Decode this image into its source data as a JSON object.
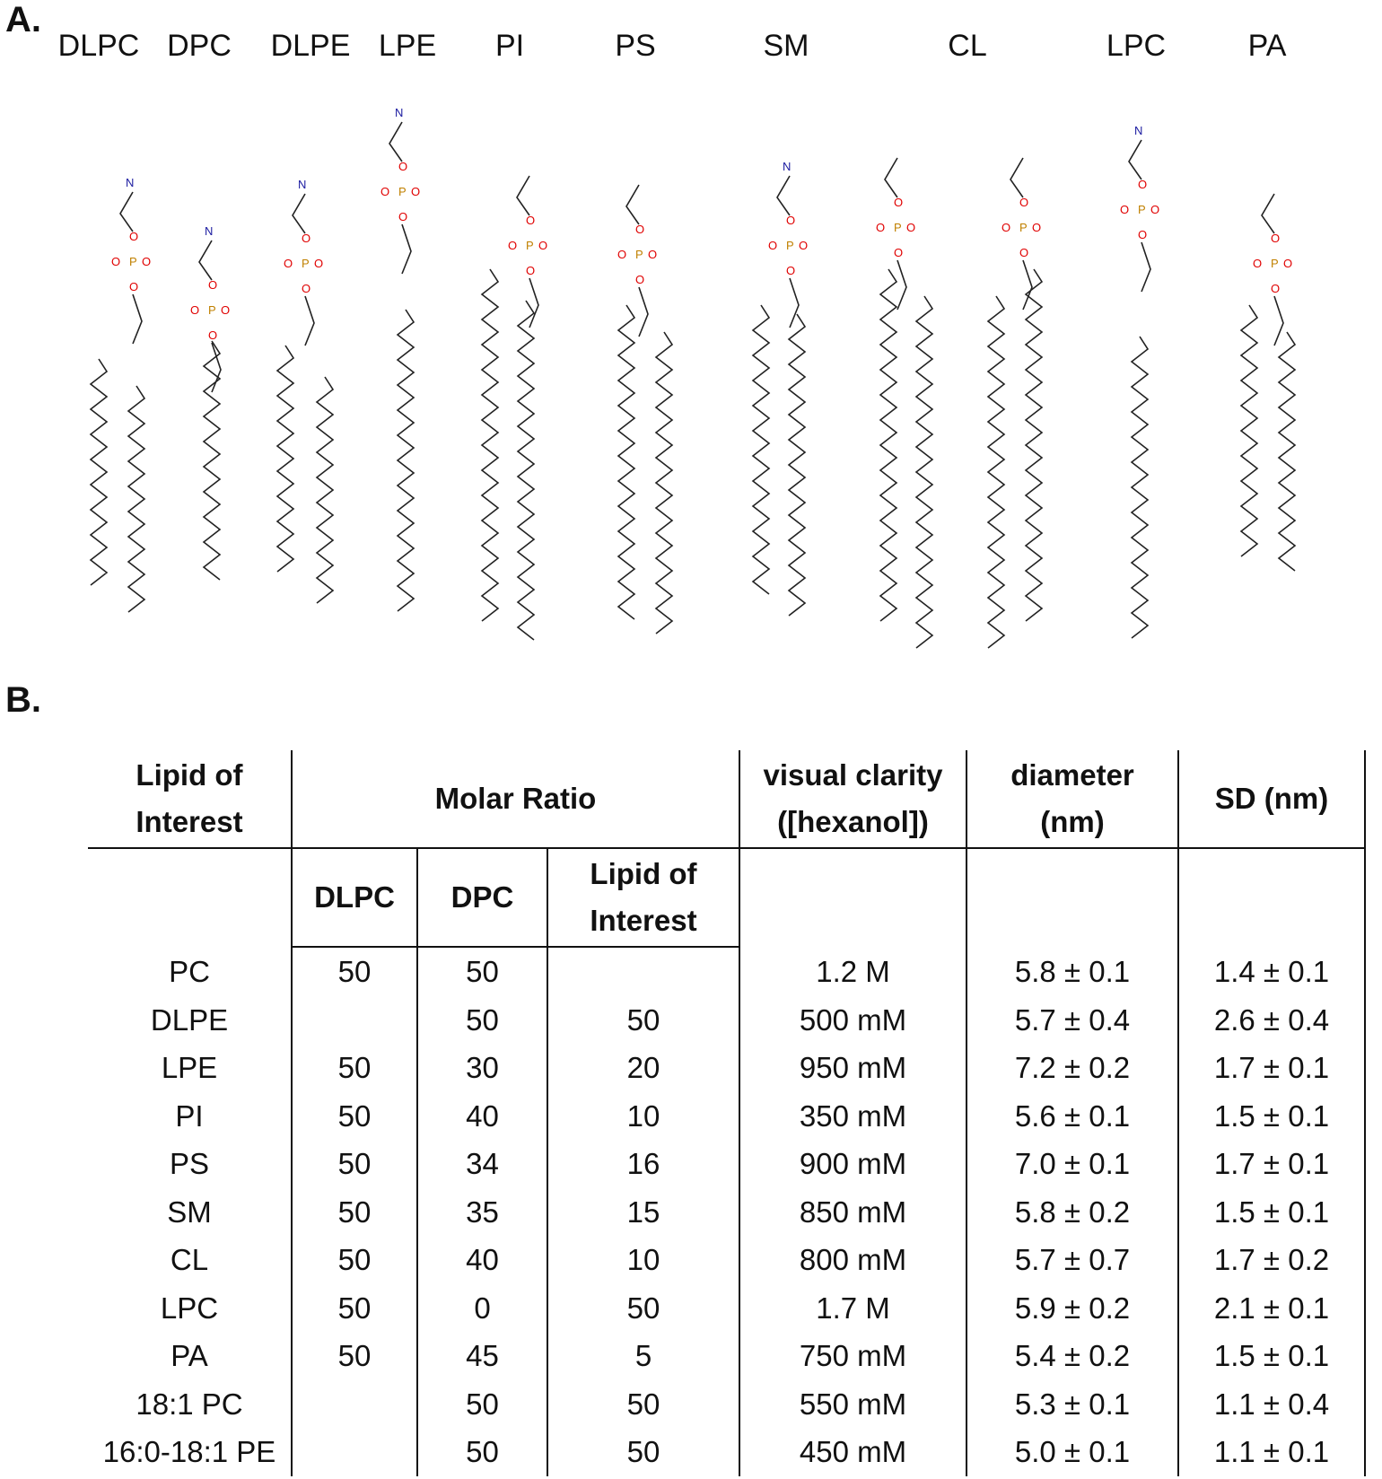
{
  "panels": {
    "a": "A.",
    "b": "B."
  },
  "structures": {
    "names": [
      "DLPC",
      "DPC",
      "DLPE",
      "LPE",
      "PI",
      "PS",
      "SM",
      "CL",
      "LPC",
      "PA"
    ]
  },
  "table": {
    "headers": {
      "lipid_of_interest": [
        "Lipid of",
        "Interest"
      ],
      "molar_ratio": "Molar Ratio",
      "visual_clarity": [
        "visual clarity",
        "([hexanol])"
      ],
      "diameter": [
        "diameter",
        "(nm)"
      ],
      "sd": "SD (nm)",
      "sub_dlpc": "DLPC",
      "sub_dpc": "DPC",
      "sub_lipid": [
        "Lipid of",
        "Interest"
      ]
    },
    "rows": [
      {
        "lipid": "PC",
        "dlpc": "50",
        "dpc": "50",
        "loi": "",
        "clarity": "1.2 M",
        "diameter": "5.8 ± 0.1",
        "sd": "1.4 ± 0.1"
      },
      {
        "lipid": "DLPE",
        "dlpc": "",
        "dpc": "50",
        "loi": "50",
        "clarity": "500 mM",
        "diameter": "5.7 ± 0.4",
        "sd": "2.6 ± 0.4"
      },
      {
        "lipid": "LPE",
        "dlpc": "50",
        "dpc": "30",
        "loi": "20",
        "clarity": "950 mM",
        "diameter": "7.2 ± 0.2",
        "sd": "1.7 ± 0.1"
      },
      {
        "lipid": "PI",
        "dlpc": "50",
        "dpc": "40",
        "loi": "10",
        "clarity": "350 mM",
        "diameter": "5.6 ± 0.1",
        "sd": "1.5 ± 0.1"
      },
      {
        "lipid": "PS",
        "dlpc": "50",
        "dpc": "34",
        "loi": "16",
        "clarity": "900 mM",
        "diameter": "7.0 ± 0.1",
        "sd": "1.7 ± 0.1"
      },
      {
        "lipid": "SM",
        "dlpc": "50",
        "dpc": "35",
        "loi": "15",
        "clarity": "850 mM",
        "diameter": "5.8 ± 0.2",
        "sd": "1.5 ± 0.1"
      },
      {
        "lipid": "CL",
        "dlpc": "50",
        "dpc": "40",
        "loi": "10",
        "clarity": "800 mM",
        "diameter": "5.7 ± 0.7",
        "sd": "1.7 ± 0.2"
      },
      {
        "lipid": "LPC",
        "dlpc": "50",
        "dpc": "0",
        "loi": "50",
        "clarity": "1.7 M",
        "diameter": "5.9 ± 0.2",
        "sd": "2.1 ± 0.1"
      },
      {
        "lipid": "PA",
        "dlpc": "50",
        "dpc": "45",
        "loi": "5",
        "clarity": "750 mM",
        "diameter": "5.4 ± 0.2",
        "sd": "1.5 ± 0.1"
      },
      {
        "lipid": "18:1 PC",
        "dlpc": "",
        "dpc": "50",
        "loi": "50",
        "clarity": "550 mM",
        "diameter": "5.3 ± 0.1",
        "sd": "1.1 ± 0.4"
      },
      {
        "lipid": "16:0-18:1 PE",
        "dlpc": "",
        "dpc": "50",
        "loi": "50",
        "clarity": "450 mM",
        "diameter": "5.0 ± 0.1",
        "sd": "1.1 ± 0.1"
      }
    ]
  }
}
